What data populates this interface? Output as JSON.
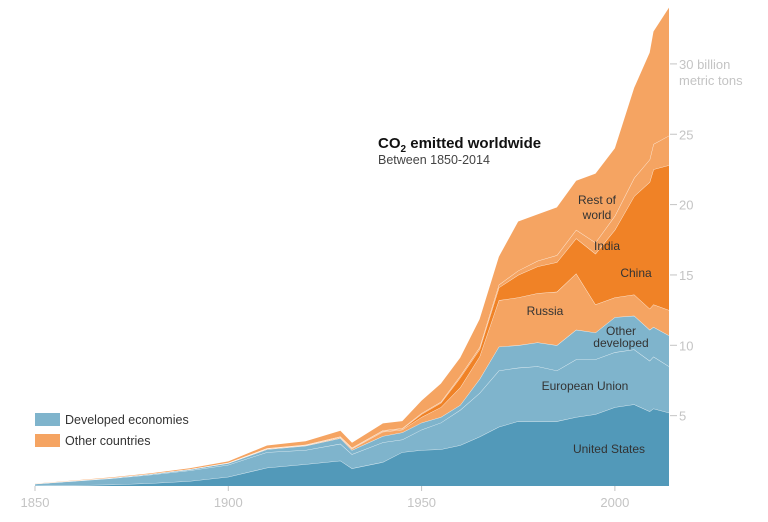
{
  "chart_data": {
    "type": "area",
    "stacked": true,
    "title_prefix": "CO",
    "title_sub": "2",
    "title_suffix": " emitted worldwide",
    "subtitle": "Between 1850-2014",
    "y_unit_label": [
      "billion",
      "metric tons"
    ],
    "xlim": [
      1850,
      2014
    ],
    "ylim": [
      0,
      34
    ],
    "x_ticks": [
      "1850",
      "1900",
      "1950",
      "2000"
    ],
    "y_ticks": [
      "5",
      "10",
      "15",
      "20",
      "25",
      "30"
    ],
    "grid": false,
    "legend_position": "bottom-left",
    "legend": [
      {
        "label": "Developed economies",
        "color": "#7fb4cc"
      },
      {
        "label": "Other countries",
        "color": "#f5a462"
      }
    ],
    "x": [
      1850,
      1860,
      1870,
      1880,
      1890,
      1900,
      1910,
      1920,
      1929,
      1932,
      1940,
      1945,
      1950,
      1955,
      1960,
      1965,
      1970,
      1975,
      1980,
      1985,
      1990,
      1995,
      2000,
      2005,
      2009,
      2010,
      2014
    ],
    "series": [
      {
        "name": "United States",
        "color": "#5299b9",
        "values": [
          0.02,
          0.05,
          0.1,
          0.2,
          0.35,
          0.65,
          1.3,
          1.55,
          1.8,
          1.25,
          1.7,
          2.4,
          2.55,
          2.6,
          2.9,
          3.5,
          4.2,
          4.6,
          4.6,
          4.6,
          4.9,
          5.1,
          5.6,
          5.8,
          5.3,
          5.5,
          5.2
        ]
      },
      {
        "name": "European Union",
        "color": "#7fb4cc",
        "values": [
          0.13,
          0.3,
          0.45,
          0.6,
          0.75,
          0.85,
          1.1,
          1.0,
          1.2,
          1.0,
          1.4,
          0.9,
          1.45,
          1.9,
          2.5,
          3.1,
          4.0,
          3.8,
          3.9,
          3.6,
          4.1,
          3.9,
          3.9,
          3.9,
          3.6,
          3.7,
          3.3
        ]
      },
      {
        "name": "Other developed",
        "color": "#7fb4cc",
        "values": [
          0.01,
          0.02,
          0.04,
          0.06,
          0.08,
          0.12,
          0.2,
          0.3,
          0.4,
          0.3,
          0.45,
          0.5,
          0.5,
          0.4,
          0.35,
          1.0,
          1.7,
          1.6,
          1.7,
          1.8,
          2.1,
          1.9,
          2.5,
          2.4,
          2.2,
          2.1,
          2.2
        ]
      },
      {
        "name": "Russia",
        "color": "#f5a462",
        "values": [
          0,
          0,
          0,
          0,
          0.01,
          0.02,
          0.05,
          0.03,
          0.05,
          0.1,
          0.3,
          0.2,
          0.4,
          0.7,
          1.25,
          1.6,
          3.3,
          3.4,
          3.5,
          3.8,
          4.0,
          2.0,
          1.4,
          1.5,
          1.5,
          1.6,
          1.8
        ]
      },
      {
        "name": "China",
        "color": "#f08226",
        "values": [
          0,
          0,
          0,
          0,
          0,
          0,
          0.01,
          0.02,
          0.03,
          0.03,
          0.05,
          0.05,
          0.2,
          0.3,
          0.7,
          0.5,
          0.9,
          1.6,
          1.9,
          2.1,
          2.5,
          3.6,
          4.8,
          7.0,
          9.0,
          9.6,
          10.3
        ]
      },
      {
        "name": "India",
        "color": "#f5a462",
        "values": [
          0,
          0,
          0,
          0,
          0,
          0.01,
          0.02,
          0.03,
          0.04,
          0.04,
          0.05,
          0.06,
          0.07,
          0.08,
          0.12,
          0.15,
          0.2,
          0.3,
          0.4,
          0.5,
          0.6,
          0.8,
          1.0,
          1.3,
          1.6,
          1.8,
          2.1
        ]
      },
      {
        "name": "Rest of world",
        "color": "#f5a462",
        "values": [
          0.01,
          0.02,
          0.03,
          0.05,
          0.07,
          0.1,
          0.2,
          0.25,
          0.4,
          0.35,
          0.5,
          0.5,
          0.9,
          1.3,
          1.3,
          2.0,
          2.0,
          3.5,
          3.3,
          3.4,
          3.5,
          4.9,
          4.8,
          6.4,
          7.6,
          8.0,
          9.1
        ]
      }
    ],
    "labels": {
      "rest_of_world": [
        "Rest of",
        "world"
      ],
      "india": "India",
      "china": "China",
      "russia": "Russia",
      "other_developed": [
        "Other",
        "developed"
      ],
      "european_union": "European Union",
      "united_states": "United States"
    }
  }
}
